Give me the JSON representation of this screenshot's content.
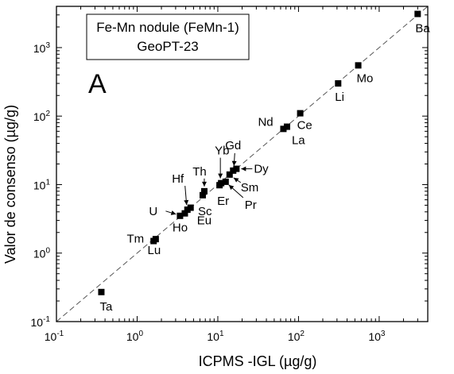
{
  "chart_data": {
    "type": "scatter",
    "scale": "log-log",
    "xlabel": "ICPMS -IGL (µg/g)",
    "ylabel": "Valor de consenso (µg/g)",
    "xlim": [
      0.1,
      4000
    ],
    "ylim": [
      0.1,
      4000
    ],
    "ticks": [
      {
        "exp": "-1",
        "value": 0.1
      },
      {
        "exp": "0",
        "value": 1
      },
      {
        "exp": "1",
        "value": 10
      },
      {
        "exp": "2",
        "value": 100
      },
      {
        "exp": "3",
        "value": 1000
      }
    ],
    "tick_base": "10",
    "reference_line": "1:1",
    "panel_letter": "A",
    "legend_box": {
      "line1": "Fe-Mn nodule (FeMn-1)",
      "line2": "GeoPT-23"
    },
    "points": [
      {
        "label": "Ta",
        "x": 0.36,
        "y": 0.27
      },
      {
        "label": "Tm",
        "x": 1.6,
        "y": 1.5
      },
      {
        "label": "Lu",
        "x": 1.7,
        "y": 1.6
      },
      {
        "label": "U",
        "x": 3.4,
        "y": 3.5
      },
      {
        "label": "Ho",
        "x": 3.9,
        "y": 3.8
      },
      {
        "label": "Hf",
        "x": 4.2,
        "y": 4.3
      },
      {
        "label": "Eu",
        "x": 4.6,
        "y": 4.6
      },
      {
        "label": "Sc",
        "x": 6.5,
        "y": 7.0
      },
      {
        "label": "Th",
        "x": 6.8,
        "y": 8.0
      },
      {
        "label": "Er",
        "x": 10.5,
        "y": 9.8
      },
      {
        "label": "Yb",
        "x": 11.0,
        "y": 10.5
      },
      {
        "label": "Pr",
        "x": 12.5,
        "y": 11.0
      },
      {
        "label": "Sm",
        "x": 14.0,
        "y": 14.0
      },
      {
        "label": "Gd",
        "x": 15.5,
        "y": 16.0
      },
      {
        "label": "Dy",
        "x": 17.0,
        "y": 17.0
      },
      {
        "label": "Nd",
        "x": 65,
        "y": 65
      },
      {
        "label": "La",
        "x": 72,
        "y": 70
      },
      {
        "label": "Ce",
        "x": 105,
        "y": 110
      },
      {
        "label": "Li",
        "x": 310,
        "y": 300
      },
      {
        "label": "Mo",
        "x": 550,
        "y": 550
      },
      {
        "label": "Ba",
        "x": 3000,
        "y": 3100
      }
    ]
  }
}
